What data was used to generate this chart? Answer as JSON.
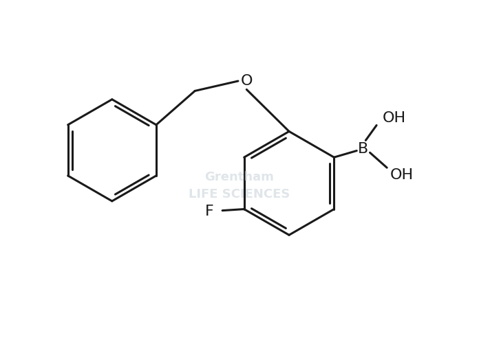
{
  "background_color": "#ffffff",
  "line_color": "#1a1a1a",
  "line_width": 2.2,
  "font_size_labels": 16,
  "watermark_color": "#c8d0d8",
  "watermark_alpha": 0.55,
  "fig_width": 6.96,
  "fig_height": 5.2,
  "dpi": 100,
  "xlim": [
    0,
    10
  ],
  "ylim": [
    0,
    7.5
  ]
}
